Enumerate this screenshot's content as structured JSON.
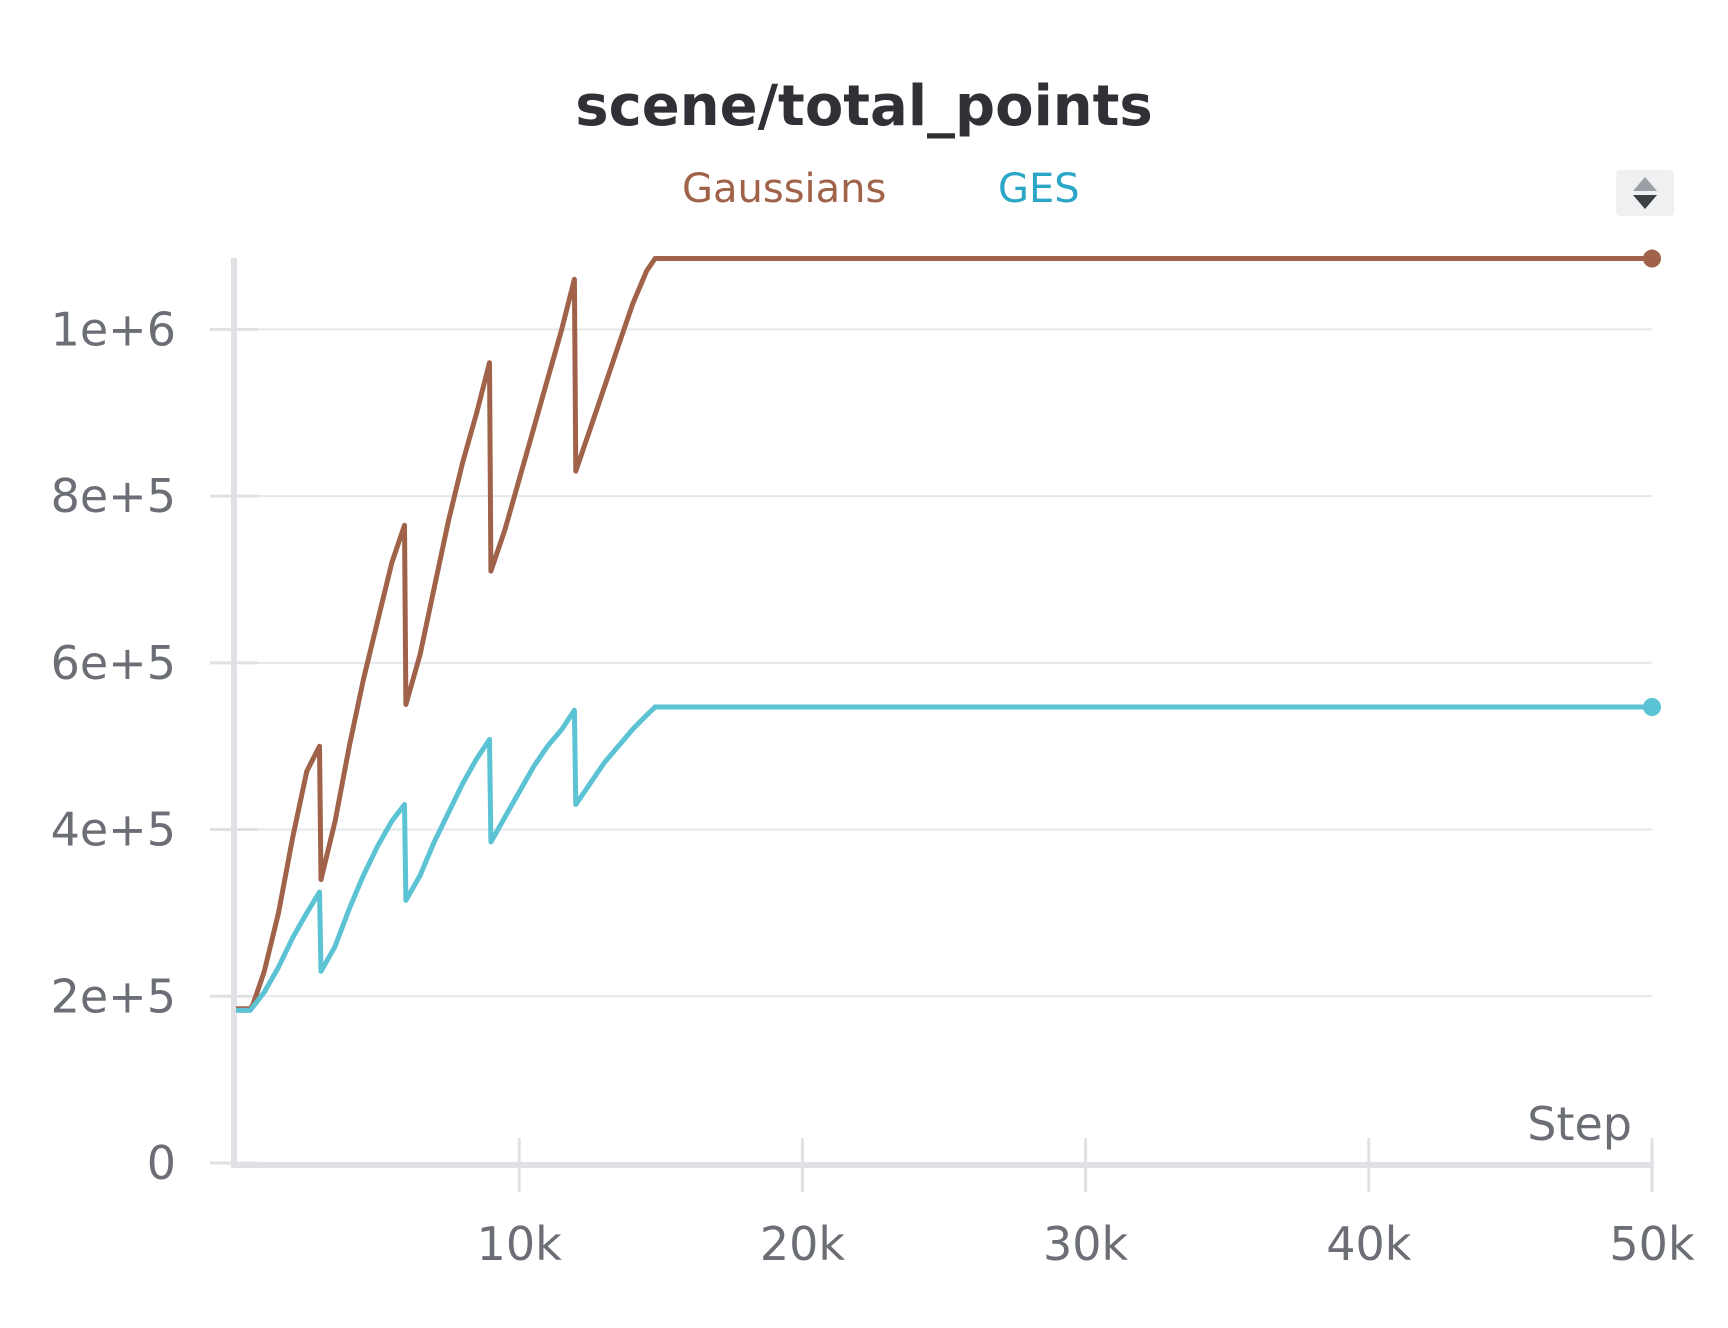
{
  "chart_data": {
    "type": "line",
    "title": "scene/total_points",
    "xlabel": "Step",
    "ylabel": "",
    "xlim": [
      0,
      50000
    ],
    "ylim": [
      0,
      1100000
    ],
    "x_ticks": [
      10000,
      20000,
      30000,
      40000,
      50000
    ],
    "x_tick_labels": [
      "10k",
      "20k",
      "30k",
      "40k",
      "50k"
    ],
    "y_ticks": [
      0,
      200000,
      400000,
      600000,
      800000,
      1000000
    ],
    "y_tick_labels": [
      "0",
      "2e+5",
      "4e+5",
      "6e+5",
      "8e+5",
      "1e+6"
    ],
    "grid": true,
    "legend_position": "top-center",
    "series": [
      {
        "name": "Gaussians",
        "color": "#a0634a",
        "points": [
          [
            0,
            185000
          ],
          [
            500,
            185000
          ],
          [
            600,
            190000
          ],
          [
            1000,
            230000
          ],
          [
            1500,
            300000
          ],
          [
            2000,
            390000
          ],
          [
            2500,
            470000
          ],
          [
            2950,
            500000
          ],
          [
            3000,
            340000
          ],
          [
            3500,
            410000
          ],
          [
            4000,
            500000
          ],
          [
            4500,
            580000
          ],
          [
            5000,
            650000
          ],
          [
            5500,
            720000
          ],
          [
            5950,
            765000
          ],
          [
            6000,
            550000
          ],
          [
            6500,
            610000
          ],
          [
            7000,
            690000
          ],
          [
            7500,
            770000
          ],
          [
            8000,
            840000
          ],
          [
            8500,
            900000
          ],
          [
            8950,
            960000
          ],
          [
            9000,
            710000
          ],
          [
            9500,
            760000
          ],
          [
            10000,
            820000
          ],
          [
            10500,
            880000
          ],
          [
            11000,
            940000
          ],
          [
            11500,
            1000000
          ],
          [
            11950,
            1060000
          ],
          [
            12000,
            830000
          ],
          [
            12500,
            880000
          ],
          [
            13000,
            930000
          ],
          [
            13500,
            980000
          ],
          [
            14000,
            1030000
          ],
          [
            14500,
            1070000
          ],
          [
            14800,
            1085000
          ],
          [
            50000,
            1085000
          ]
        ]
      },
      {
        "name": "GES",
        "color": "#5bc3d3",
        "points": [
          [
            0,
            183000
          ],
          [
            500,
            183000
          ],
          [
            1000,
            205000
          ],
          [
            1500,
            235000
          ],
          [
            2000,
            270000
          ],
          [
            2500,
            300000
          ],
          [
            2950,
            325000
          ],
          [
            3000,
            230000
          ],
          [
            3500,
            260000
          ],
          [
            4000,
            305000
          ],
          [
            4500,
            345000
          ],
          [
            5000,
            380000
          ],
          [
            5500,
            410000
          ],
          [
            5950,
            430000
          ],
          [
            6000,
            315000
          ],
          [
            6500,
            345000
          ],
          [
            7000,
            385000
          ],
          [
            7500,
            420000
          ],
          [
            8000,
            455000
          ],
          [
            8500,
            485000
          ],
          [
            8950,
            508000
          ],
          [
            9000,
            385000
          ],
          [
            9500,
            415000
          ],
          [
            10000,
            445000
          ],
          [
            10500,
            475000
          ],
          [
            11000,
            500000
          ],
          [
            11500,
            520000
          ],
          [
            11950,
            543000
          ],
          [
            12000,
            430000
          ],
          [
            12500,
            455000
          ],
          [
            13000,
            480000
          ],
          [
            13500,
            500000
          ],
          [
            14000,
            520000
          ],
          [
            14500,
            537000
          ],
          [
            14800,
            547000
          ],
          [
            50000,
            547000
          ]
        ]
      }
    ]
  }
}
